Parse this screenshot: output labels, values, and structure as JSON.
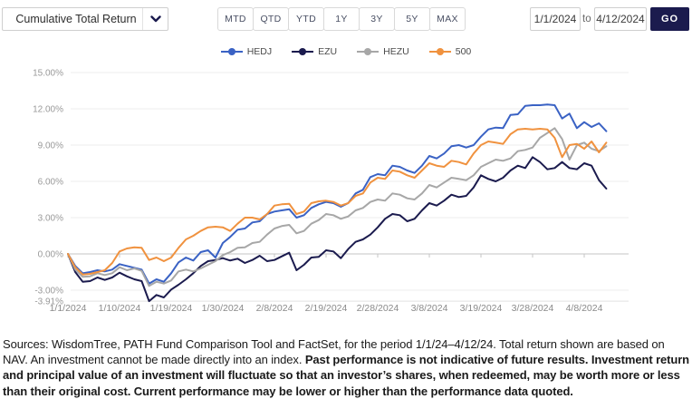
{
  "controls": {
    "metric_dropdown_value": "Cumulative Total Return",
    "period_buttons": [
      "MTD",
      "QTD",
      "YTD",
      "1Y",
      "3Y",
      "5Y",
      "MAX"
    ],
    "date_from": "1/1/2024",
    "to_label": "to",
    "date_to": "4/12/2024",
    "go_label": "GO"
  },
  "legend": [
    {
      "name": "HEDJ",
      "color": "#3a62c4"
    },
    {
      "name": "EZU",
      "color": "#1b1b4e"
    },
    {
      "name": "HEZU",
      "color": "#a7a7a7"
    },
    {
      "name": "500",
      "color": "#f0923f"
    }
  ],
  "colors": {
    "accent_navy": "#1b1b4e",
    "gridline": "#ededed",
    "zero_axis": "#c4c4c4",
    "min_gridline": "#e2e2e2",
    "y_label": "#999999",
    "x_label": "#8a8a8a"
  },
  "chart_data": {
    "type": "line",
    "unit": "percent cumulative total return",
    "ylim": [
      -3.91,
      15
    ],
    "grid": true,
    "legend_position": "top-center",
    "x_tick_labels": [
      "1/1/2024",
      "1/10/2024",
      "1/19/2024",
      "1/30/2024",
      "2/8/2024",
      "2/19/2024",
      "2/28/2024",
      "3/8/2024",
      "3/19/2024",
      "3/28/2024",
      "4/8/2024"
    ],
    "x_tick_indices": [
      0,
      7,
      14,
      21,
      28,
      35,
      42,
      49,
      56,
      63,
      70
    ],
    "y_tick_labels": [
      "15.00%",
      "12.00%",
      "9.00%",
      "6.00%",
      "3.00%",
      "0.00%",
      "-3.00%",
      "-3.91%"
    ],
    "y_tick_values": [
      15,
      12,
      9,
      6,
      3,
      0,
      -3,
      -3.91
    ],
    "series": [
      {
        "name": "HEDJ",
        "color": "#3a62c4",
        "values": [
          0,
          -1.0,
          -1.6,
          -1.5,
          -1.35,
          -1.45,
          -1.3,
          -0.85,
          -1.0,
          -1.15,
          -1.3,
          -2.45,
          -2.1,
          -2.3,
          -1.6,
          -0.7,
          -0.3,
          -0.55,
          0.15,
          0.3,
          -0.3,
          0.9,
          1.4,
          2.0,
          2.1,
          2.6,
          2.7,
          3.3,
          3.5,
          3.6,
          3.7,
          3.0,
          3.2,
          3.8,
          4.1,
          4.3,
          4.2,
          3.9,
          4.2,
          5.0,
          5.3,
          6.35,
          6.6,
          6.5,
          7.3,
          7.2,
          6.9,
          6.7,
          7.3,
          8.1,
          7.9,
          8.3,
          8.9,
          9.0,
          8.8,
          9.0,
          9.7,
          10.3,
          10.45,
          10.4,
          11.5,
          11.55,
          12.25,
          12.3,
          12.3,
          12.35,
          12.3,
          11.2,
          11.6,
          10.4,
          10.9,
          10.5,
          10.8,
          10.15
        ]
      },
      {
        "name": "EZU",
        "color": "#1b1b4e",
        "values": [
          0,
          -1.5,
          -2.3,
          -2.25,
          -1.95,
          -2.15,
          -1.95,
          -1.55,
          -1.85,
          -2.1,
          -2.25,
          -3.91,
          -3.4,
          -3.6,
          -2.95,
          -2.55,
          -2.1,
          -1.6,
          -1.0,
          -0.6,
          -0.5,
          -0.35,
          -0.55,
          -0.4,
          -0.75,
          -0.5,
          -0.15,
          -0.6,
          -0.5,
          -0.2,
          0.1,
          -1.35,
          -0.9,
          -0.3,
          -0.25,
          0.3,
          0.2,
          -0.35,
          0.4,
          1.0,
          1.2,
          1.6,
          2.2,
          2.9,
          3.3,
          3.2,
          2.7,
          2.9,
          3.6,
          4.2,
          4.0,
          4.4,
          4.9,
          4.7,
          4.8,
          5.5,
          6.5,
          6.2,
          6.0,
          6.3,
          6.9,
          7.3,
          7.1,
          8.0,
          7.6,
          7.0,
          7.1,
          7.6,
          7.1,
          7.0,
          7.5,
          7.3,
          6.1,
          5.4
        ]
      },
      {
        "name": "HEZU",
        "color": "#a7a7a7",
        "values": [
          0,
          -1.3,
          -1.9,
          -1.85,
          -1.6,
          -1.75,
          -1.6,
          -1.1,
          -1.35,
          -1.2,
          -1.4,
          -2.65,
          -2.3,
          -2.45,
          -2.2,
          -1.45,
          -1.3,
          -1.45,
          -1.2,
          -0.9,
          -0.6,
          -0.1,
          0.15,
          0.5,
          0.55,
          0.9,
          1.0,
          1.6,
          2.1,
          2.3,
          2.4,
          1.7,
          1.9,
          2.5,
          2.8,
          3.3,
          3.2,
          2.9,
          3.1,
          3.6,
          3.8,
          4.3,
          4.5,
          4.4,
          5.0,
          4.9,
          4.6,
          4.5,
          5.0,
          5.7,
          5.5,
          5.9,
          6.3,
          6.2,
          6.1,
          6.5,
          7.2,
          7.5,
          7.8,
          7.7,
          7.9,
          8.5,
          8.6,
          8.8,
          9.6,
          10.0,
          10.4,
          9.5,
          7.8,
          9.0,
          9.2,
          8.7,
          8.5,
          8.9
        ]
      },
      {
        "name": "500",
        "color": "#f0923f",
        "values": [
          0,
          -1.1,
          -1.7,
          -1.65,
          -1.5,
          -1.35,
          -0.75,
          0.2,
          0.45,
          0.55,
          0.5,
          -0.5,
          -0.3,
          -0.6,
          -0.3,
          0.5,
          1.2,
          1.5,
          1.9,
          2.2,
          2.25,
          2.2,
          1.9,
          2.5,
          3.0,
          3.0,
          2.85,
          3.3,
          4.0,
          4.1,
          4.15,
          3.3,
          3.5,
          4.2,
          4.35,
          4.4,
          4.3,
          4.0,
          4.2,
          4.8,
          5.0,
          5.9,
          6.3,
          6.2,
          6.9,
          6.8,
          6.5,
          6.3,
          6.9,
          7.5,
          7.3,
          7.2,
          7.7,
          7.6,
          7.4,
          8.3,
          9.0,
          9.3,
          9.2,
          9.1,
          9.9,
          10.3,
          10.35,
          10.3,
          10.35,
          10.3,
          9.6,
          8.0,
          9.0,
          9.1,
          8.7,
          9.3,
          8.4,
          9.2
        ]
      }
    ]
  },
  "footer": {
    "normal_text": "Sources: WisdomTree, PATH Fund Comparison Tool and FactSet, for the period 1/1/24–4/12/24. Total return shown are based on NAV. An investment cannot be made directly into an index. ",
    "bold_text": "Past performance is not indicative of future results. Investment return and principal value of an investment will fluctuate so that an investor’s shares, when redeemed, may be worth more or less than their original cost. Current performance may be lower or higher than the performance data quoted."
  }
}
